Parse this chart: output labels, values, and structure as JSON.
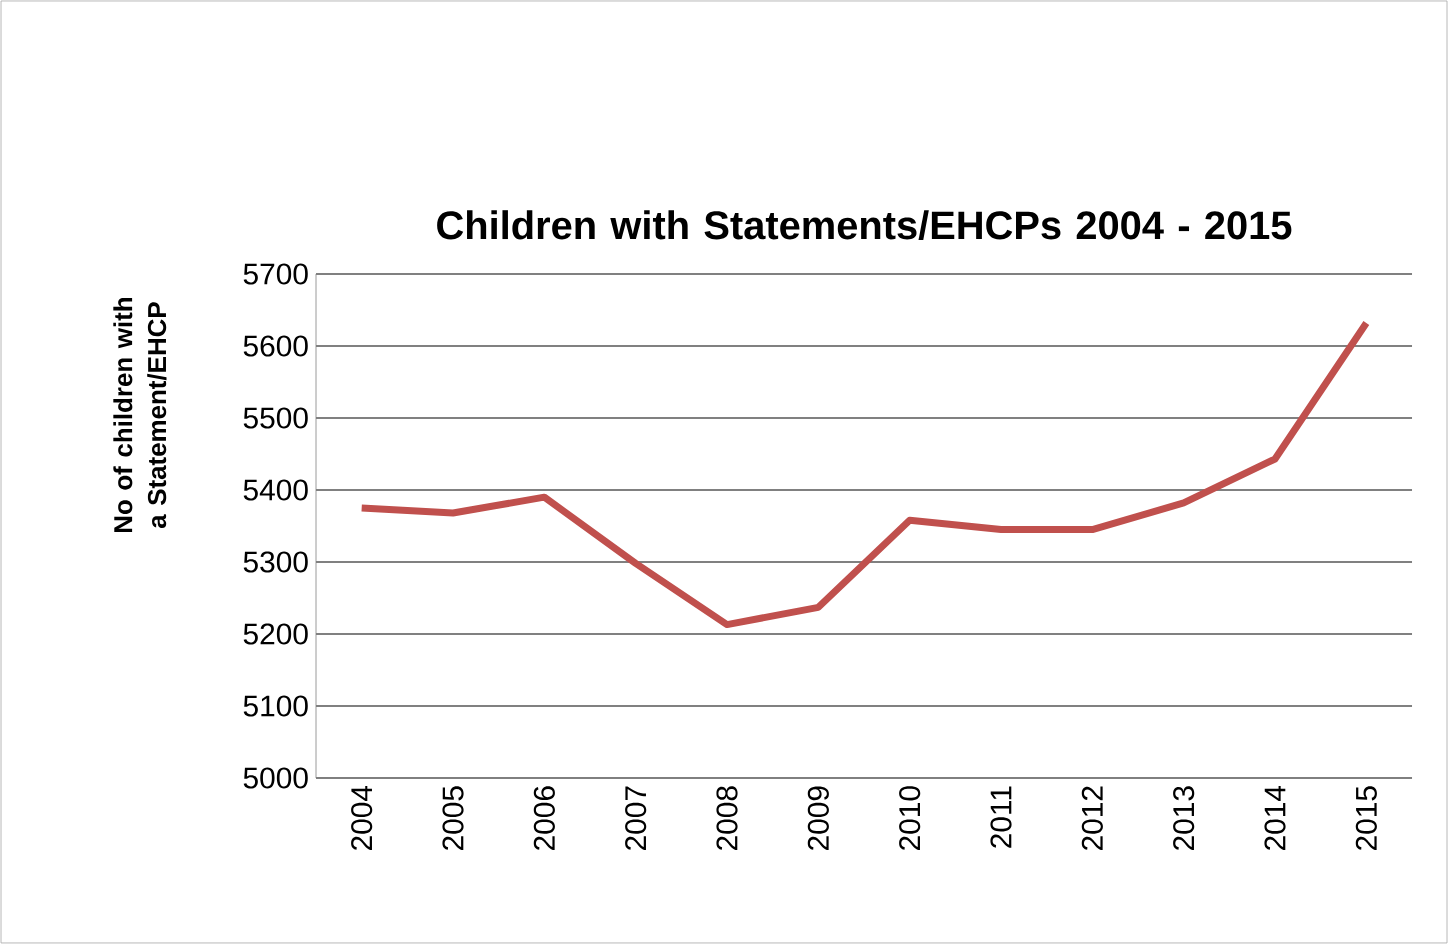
{
  "chart_data": {
    "type": "line",
    "title": "Children with Statements/EHCPs 2004 - 2015",
    "ylabel": "No of children with a Statement/EHCP",
    "categories": [
      "2004",
      "2005",
      "2006",
      "2007",
      "2008",
      "2009",
      "2010",
      "2011",
      "2012",
      "2013",
      "2014",
      "2015"
    ],
    "series": [
      {
        "color": "#c0504d",
        "values": [
          5375,
          5368,
          5390,
          5298,
          5213,
          5237,
          5358,
          5345,
          5345,
          5382,
          5443,
          5632
        ]
      }
    ],
    "ylim": [
      5000,
      5700
    ],
    "yticks": [
      5000,
      5100,
      5200,
      5300,
      5400,
      5500,
      5600,
      5700
    ],
    "grid": "y",
    "marker": "none",
    "line_style": "solid"
  }
}
